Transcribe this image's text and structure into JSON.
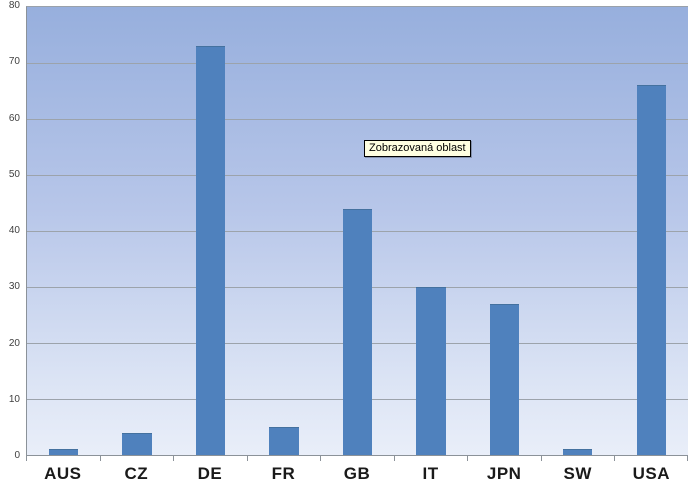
{
  "chart_data": {
    "type": "bar",
    "categories": [
      "AUS",
      "CZ",
      "DE",
      "FR",
      "GB",
      "IT",
      "JPN",
      "SW",
      "USA"
    ],
    "values": [
      1,
      4,
      73,
      5,
      44,
      30,
      27,
      1,
      66
    ],
    "title": "",
    "xlabel": "",
    "ylabel": "",
    "ylim": [
      0,
      80
    ],
    "ytick_step": 10,
    "yticks": [
      0,
      10,
      20,
      30,
      40,
      50,
      60,
      70,
      80
    ],
    "grid": true,
    "legend": false,
    "plot_area_tooltip": "Zobrazovaná oblast"
  },
  "tooltip": {
    "text": "Zobrazovaná oblast"
  },
  "colors": {
    "bar": "#4f81bd",
    "bar_border": "#44719f",
    "plot_gradient_top": "#97afdd",
    "plot_gradient_bottom": "#e9eef9",
    "gridline": "#9ca3ab",
    "axis": "#8b9299",
    "y_label": "#3f3f3f",
    "x_label": "#1a1a1a",
    "tooltip_bg": "#ffffe1",
    "tooltip_border": "#000000",
    "chart_bg": "#ffffff"
  }
}
